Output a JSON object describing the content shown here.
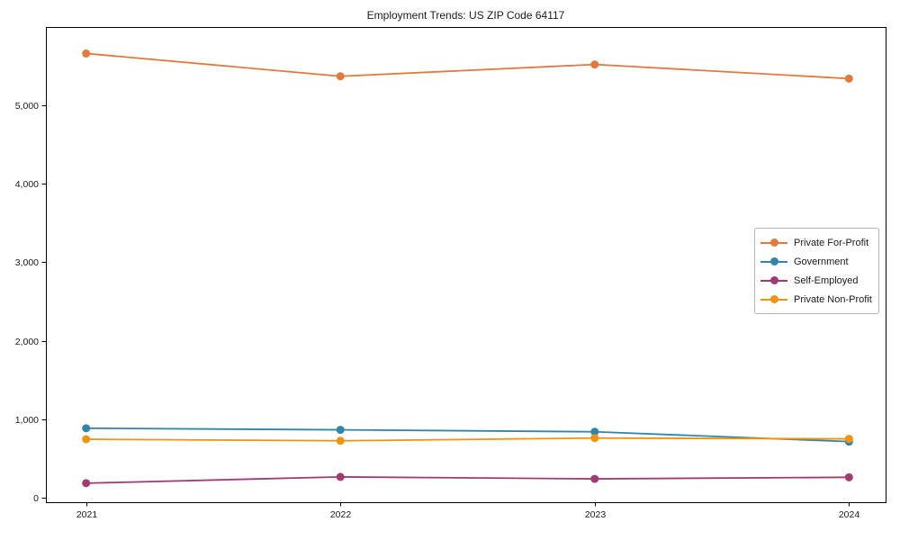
{
  "title": "Employment Trends: US ZIP Code 64117",
  "chart_data": {
    "type": "line",
    "title": "Employment Trends: US ZIP Code 64117",
    "xlabel": "",
    "ylabel": "",
    "categories": [
      "2021",
      "2022",
      "2023",
      "2024"
    ],
    "series": [
      {
        "name": "Private For-Profit",
        "color": "#E3793C",
        "values": [
          5660,
          5370,
          5520,
          5340
        ]
      },
      {
        "name": "Government",
        "color": "#2E86AB",
        "values": [
          885,
          865,
          840,
          715
        ]
      },
      {
        "name": "Self-Employed",
        "color": "#A23B72",
        "values": [
          185,
          265,
          240,
          260
        ]
      },
      {
        "name": "Private Non-Profit",
        "color": "#F1930D",
        "values": [
          745,
          725,
          760,
          750
        ]
      }
    ],
    "yticks": [
      0,
      1000,
      2000,
      3000,
      4000,
      5000
    ],
    "ytick_labels": [
      "0",
      "1,000",
      "2,000",
      "3,000",
      "4,000",
      "5,000"
    ],
    "ylim": [
      -60,
      6000
    ],
    "grid": false,
    "marker": "circle",
    "legend_position": "center-right-inside",
    "axis_color": "#000000",
    "text_color": "#1a1a1a"
  }
}
